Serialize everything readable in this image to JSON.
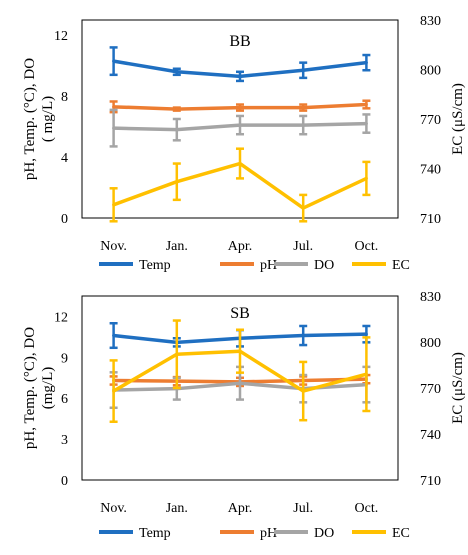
{
  "chart_data": [
    {
      "type": "line",
      "title": "BB",
      "categories": [
        "Nov.",
        "Jan.",
        "Apr.",
        "Jul.",
        "Oct."
      ],
      "ylabel": "pH, Temp. (°C), DO\n( mg/L)",
      "y2label": "EC (μS/cm)",
      "ylim": [
        0,
        13
      ],
      "y2lim": [
        710,
        830
      ],
      "yticks": [
        "0",
        "4",
        "8",
        "12"
      ],
      "y2ticks": [
        "710",
        "740",
        "770",
        "800",
        "830"
      ],
      "legend_position": "bottom",
      "grid": false,
      "series": [
        {
          "name": "Temp",
          "axis": "left",
          "color": "#1f6fc1",
          "values": [
            10.3,
            9.6,
            9.3,
            9.7,
            10.2
          ],
          "errors": [
            0.9,
            0.2,
            0.3,
            0.5,
            0.5
          ]
        },
        {
          "name": "pH",
          "axis": "left",
          "color": "#ed7d31",
          "values": [
            7.3,
            7.15,
            7.25,
            7.25,
            7.45
          ],
          "errors": [
            0.35,
            0.1,
            0.2,
            0.2,
            0.25
          ]
        },
        {
          "name": "DO",
          "axis": "left",
          "color": "#a5a5a5",
          "values": [
            5.9,
            5.8,
            6.1,
            6.1,
            6.2
          ],
          "errors": [
            1.2,
            0.7,
            0.6,
            0.6,
            0.6
          ]
        },
        {
          "name": "EC",
          "axis": "right",
          "color": "#ffc000",
          "values": [
            718,
            732,
            743,
            716,
            734
          ],
          "errors": [
            10,
            11,
            9,
            8,
            10
          ]
        }
      ]
    },
    {
      "type": "line",
      "title": "SB",
      "categories": [
        "Nov.",
        "Jan.",
        "Apr.",
        "Jul.",
        "Oct."
      ],
      "ylabel": "pH, Temp. (°C), DO\n(mg/L)",
      "y2label": "EC (μS/cm)",
      "ylim": [
        0,
        13.5
      ],
      "y2lim": [
        710,
        830
      ],
      "yticks": [
        "0",
        "3",
        "6",
        "9",
        "12"
      ],
      "y2ticks": [
        "710",
        "740",
        "770",
        "800",
        "830"
      ],
      "legend_position": "bottom",
      "grid": false,
      "series": [
        {
          "name": "Temp",
          "axis": "left",
          "color": "#1f6fc1",
          "values": [
            10.6,
            10.1,
            10.4,
            10.6,
            10.7
          ],
          "errors": [
            0.9,
            0.3,
            0.6,
            0.7,
            0.6
          ]
        },
        {
          "name": "pH",
          "axis": "left",
          "color": "#ed7d31",
          "values": [
            7.3,
            7.25,
            7.2,
            7.3,
            7.4
          ],
          "errors": [
            0.3,
            0.3,
            0.3,
            0.3,
            0.3
          ]
        },
        {
          "name": "DO",
          "axis": "left",
          "color": "#a5a5a5",
          "values": [
            6.6,
            6.7,
            7.1,
            6.7,
            7.0
          ],
          "errors": [
            1.3,
            0.8,
            1.2,
            1.0,
            1.3
          ]
        },
        {
          "name": "EC",
          "axis": "right",
          "color": "#ffc000",
          "values": [
            768,
            792,
            794,
            768,
            779
          ],
          "errors": [
            20,
            22,
            14,
            19,
            24
          ]
        }
      ]
    }
  ]
}
